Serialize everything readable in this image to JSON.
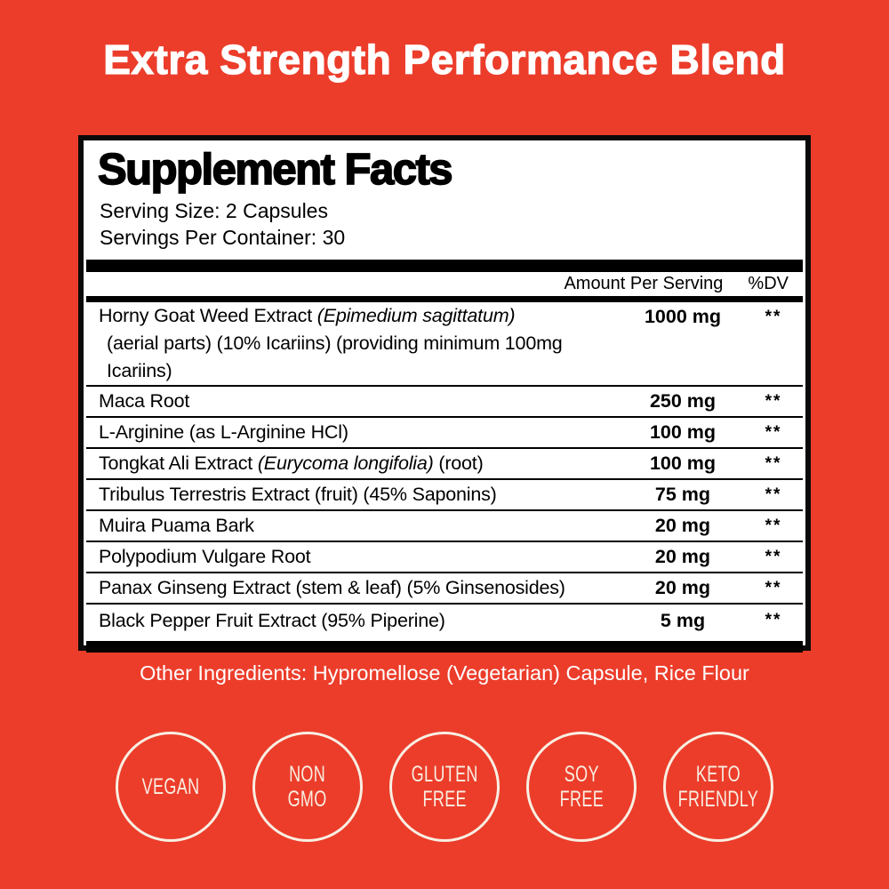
{
  "page": {
    "title": "Extra Strength Performance Blend"
  },
  "colors": {
    "background_red": "#EC3D2B",
    "badge_cream": "#F8EFE2",
    "panel_white": "#FFFFFF",
    "text_black": "#000000",
    "title_white": "#FFFFFF"
  },
  "panel": {
    "heading": "Supplement Facts",
    "serving_size": "Serving Size: 2 Capsules",
    "servings_per_container": "Servings Per Container: 30",
    "header": {
      "amount": "Amount Per Serving",
      "dv": "%DV"
    },
    "rows": [
      {
        "pre": "Horny Goat Weed Extract ",
        "italic": "(Epimedium sagittatum)",
        "post": "",
        "sub": "(aerial parts) (10% Icariins) (providing minimum 100mg Icariins)",
        "amount": "1000 mg",
        "dv": "**"
      },
      {
        "pre": "Maca Root",
        "italic": "",
        "post": "",
        "sub": "",
        "amount": "250 mg",
        "dv": "**"
      },
      {
        "pre": "L-Arginine (as L-Arginine HCl)",
        "italic": "",
        "post": "",
        "sub": "",
        "amount": "100 mg",
        "dv": "**"
      },
      {
        "pre": "Tongkat Ali Extract ",
        "italic": "(Eurycoma longifolia)",
        "post": " (root)",
        "sub": "",
        "amount": "100 mg",
        "dv": "**"
      },
      {
        "pre": "Tribulus Terrestris Extract (fruit) (45% Saponins)",
        "italic": "",
        "post": "",
        "sub": "",
        "amount": "75 mg",
        "dv": "**"
      },
      {
        "pre": "Muira Puama Bark",
        "italic": "",
        "post": "",
        "sub": "",
        "amount": "20 mg",
        "dv": "**"
      },
      {
        "pre": "Polypodium Vulgare Root",
        "italic": "",
        "post": "",
        "sub": "",
        "amount": "20 mg",
        "dv": "**"
      },
      {
        "pre": "Panax Ginseng Extract (stem & leaf) (5% Ginsenosides)",
        "italic": "",
        "post": "",
        "sub": "",
        "amount": "20 mg",
        "dv": "**"
      },
      {
        "pre": "Black Pepper Fruit Extract (95% Piperine)",
        "italic": "",
        "post": "",
        "sub": "",
        "amount": "5 mg",
        "dv": "**"
      }
    ]
  },
  "other_ingredients": "Other Ingredients: Hypromellose (Vegetarian) Capsule, Rice Flour",
  "badges": [
    {
      "id": "vegan",
      "lines": [
        "VEGAN"
      ]
    },
    {
      "id": "non-gmo",
      "lines": [
        "NON",
        "GMO"
      ]
    },
    {
      "id": "gluten-free",
      "lines": [
        "GLUTEN",
        "FREE"
      ]
    },
    {
      "id": "soy-free",
      "lines": [
        "SOY",
        "FREE"
      ]
    },
    {
      "id": "keto-friendly",
      "lines": [
        "KETO",
        "FRIENDLY"
      ]
    }
  ]
}
